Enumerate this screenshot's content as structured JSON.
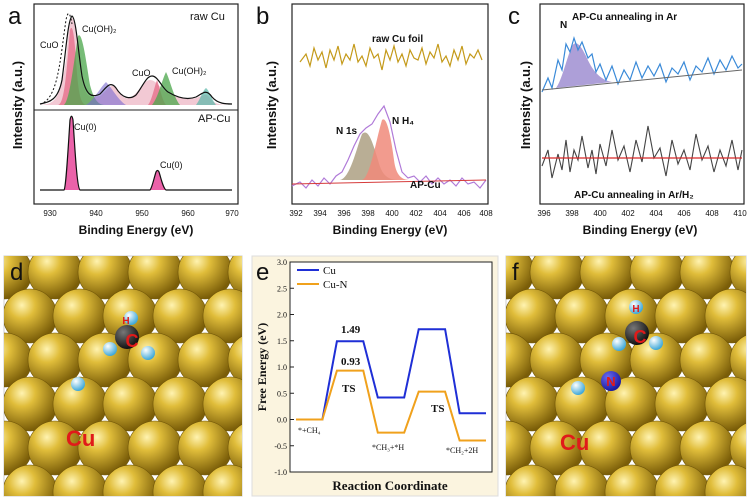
{
  "panels": {
    "a": {
      "letter": "a",
      "ylabel": "Intensity (a.u.)",
      "xlabel": "Binding Energy (eV)",
      "xticks": [
        "930",
        "940",
        "950",
        "960",
        "970"
      ],
      "top_label": "raw Cu",
      "bottom_label": "AP-Cu",
      "peaks_top": [
        "CuO",
        "Cu(OH)₂",
        "CuO",
        "Cu(OH)₂"
      ],
      "peaks_bottom": [
        "Cu(0)",
        "Cu(0)"
      ]
    },
    "b": {
      "letter": "b",
      "ylabel": "Intensity (a.u.)",
      "xlabel": "Binding Energy (eV)",
      "xticks": [
        "392",
        "394",
        "396",
        "398",
        "400",
        "402",
        "404",
        "406",
        "408"
      ],
      "top_label": "raw Cu foil",
      "bottom_label": "AP-Cu",
      "peak1": "N 1s",
      "peak2": "N H₄"
    },
    "c": {
      "letter": "c",
      "ylabel": "Intensity (a.u.)",
      "xlabel": "Binding Energy (eV)",
      "xticks": [
        "396",
        "398",
        "400",
        "402",
        "404",
        "406",
        "408",
        "410"
      ],
      "top_label": "AP-Cu annealing in Ar",
      "bottom_label": "AP-Cu annealing in Ar/H₂",
      "peak": "N"
    },
    "d": {
      "letter": "d",
      "metal": "Cu",
      "atom_h": "H",
      "atom_c": "C"
    },
    "f": {
      "letter": "f",
      "metal": "Cu",
      "atom_h": "H",
      "atom_c": "C",
      "atom_n": "N"
    }
  },
  "chart_data": {
    "type": "line",
    "letter": "e",
    "xlabel": "Reaction Coordinate",
    "ylabel": "Free Energy (eV)",
    "ylim": [
      -1.0,
      3.0
    ],
    "yticks": [
      "3.0",
      "2.5",
      "2.0",
      "1.5",
      "1.0",
      "0.5",
      "0.0",
      "-0.5",
      "-1.0"
    ],
    "states": [
      "*+CH₄",
      "TS",
      "*CH₃+*H",
      "TS",
      "*CH₂+2H"
    ],
    "legend_position": "top-left",
    "series": [
      {
        "name": "Cu",
        "color": "#1f2fd6",
        "values": [
          0.0,
          1.49,
          0.42,
          1.72,
          0.12
        ]
      },
      {
        "name": "Cu-N",
        "color": "#f0a11c",
        "values": [
          0.0,
          0.93,
          -0.25,
          0.53,
          -0.4
        ]
      }
    ],
    "annotations": [
      "1.49",
      "0.93",
      "TS",
      "TS"
    ]
  },
  "colors": {
    "gold": "#c9a227",
    "spectrum_blue": "#3a6fd8",
    "pink": "#e37bb8",
    "red": "#d62828"
  }
}
